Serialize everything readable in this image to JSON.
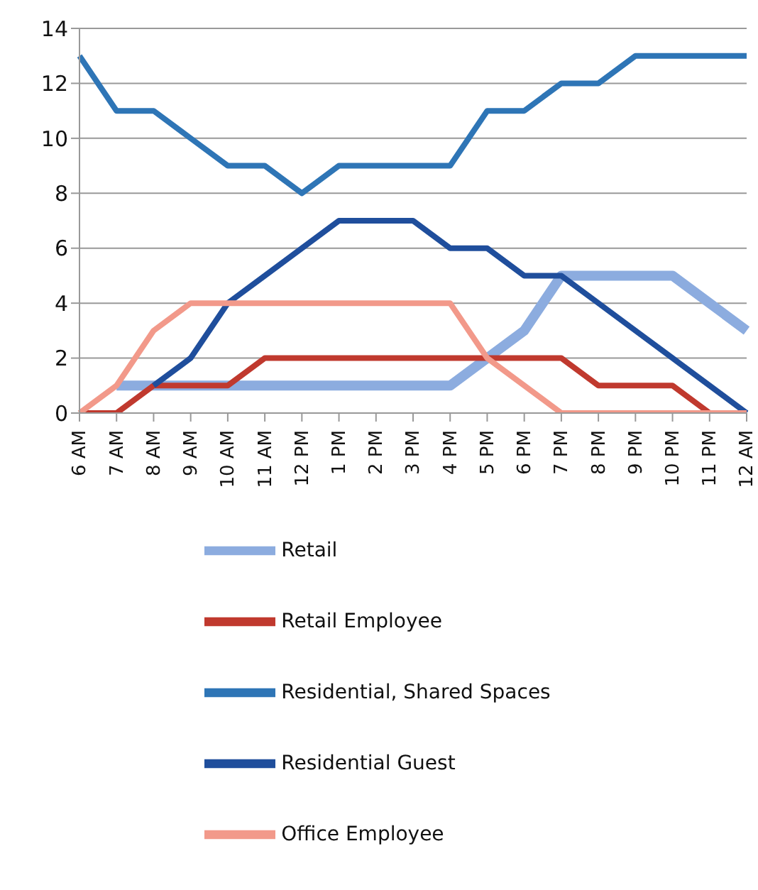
{
  "chart_data": {
    "type": "line",
    "categories": [
      "6 AM",
      "7 AM",
      "8 AM",
      "9 AM",
      "10 AM",
      "11 AM",
      "12 PM",
      "1 PM",
      "2 PM",
      "3 PM",
      "4 PM",
      "5 PM",
      "6 PM",
      "7 PM",
      "8 PM",
      "9 PM",
      "10 PM",
      "11 PM",
      "12 AM"
    ],
    "series": [
      {
        "name": "Retail",
        "color": "#8cacdf",
        "values": [
          null,
          1,
          1,
          1,
          1,
          1,
          1,
          1,
          1,
          1,
          1,
          2,
          3,
          5,
          5,
          5,
          5,
          4,
          3
        ]
      },
      {
        "name": "Retail Employee",
        "color": "#c0392e",
        "values": [
          0,
          0,
          1,
          1,
          1,
          2,
          2,
          2,
          2,
          2,
          2,
          2,
          2,
          2,
          1,
          1,
          1,
          0,
          null
        ]
      },
      {
        "name": "Residential, Shared Spaces",
        "color": "#2e75b6",
        "values": [
          13,
          11,
          11,
          10,
          9,
          9,
          8,
          9,
          9,
          9,
          9,
          11,
          11,
          12,
          12,
          13,
          13,
          13,
          13
        ]
      },
      {
        "name": "Residential Guest",
        "color": "#1f4e9c",
        "values": [
          null,
          null,
          1,
          2,
          4,
          5,
          6,
          7,
          7,
          7,
          6,
          6,
          5,
          5,
          4,
          3,
          2,
          1,
          0
        ]
      },
      {
        "name": "Office Employee",
        "color": "#f2998a",
        "values": [
          0,
          1,
          3,
          4,
          4,
          4,
          4,
          4,
          4,
          4,
          4,
          2,
          1,
          0,
          0,
          0,
          0,
          0,
          0
        ]
      }
    ],
    "ylim": [
      0,
      14
    ],
    "yticks": [
      0,
      2,
      4,
      6,
      8,
      10,
      12,
      14
    ],
    "grid": "y",
    "legend": "bottom",
    "marker": "none",
    "line_style": "solid"
  }
}
